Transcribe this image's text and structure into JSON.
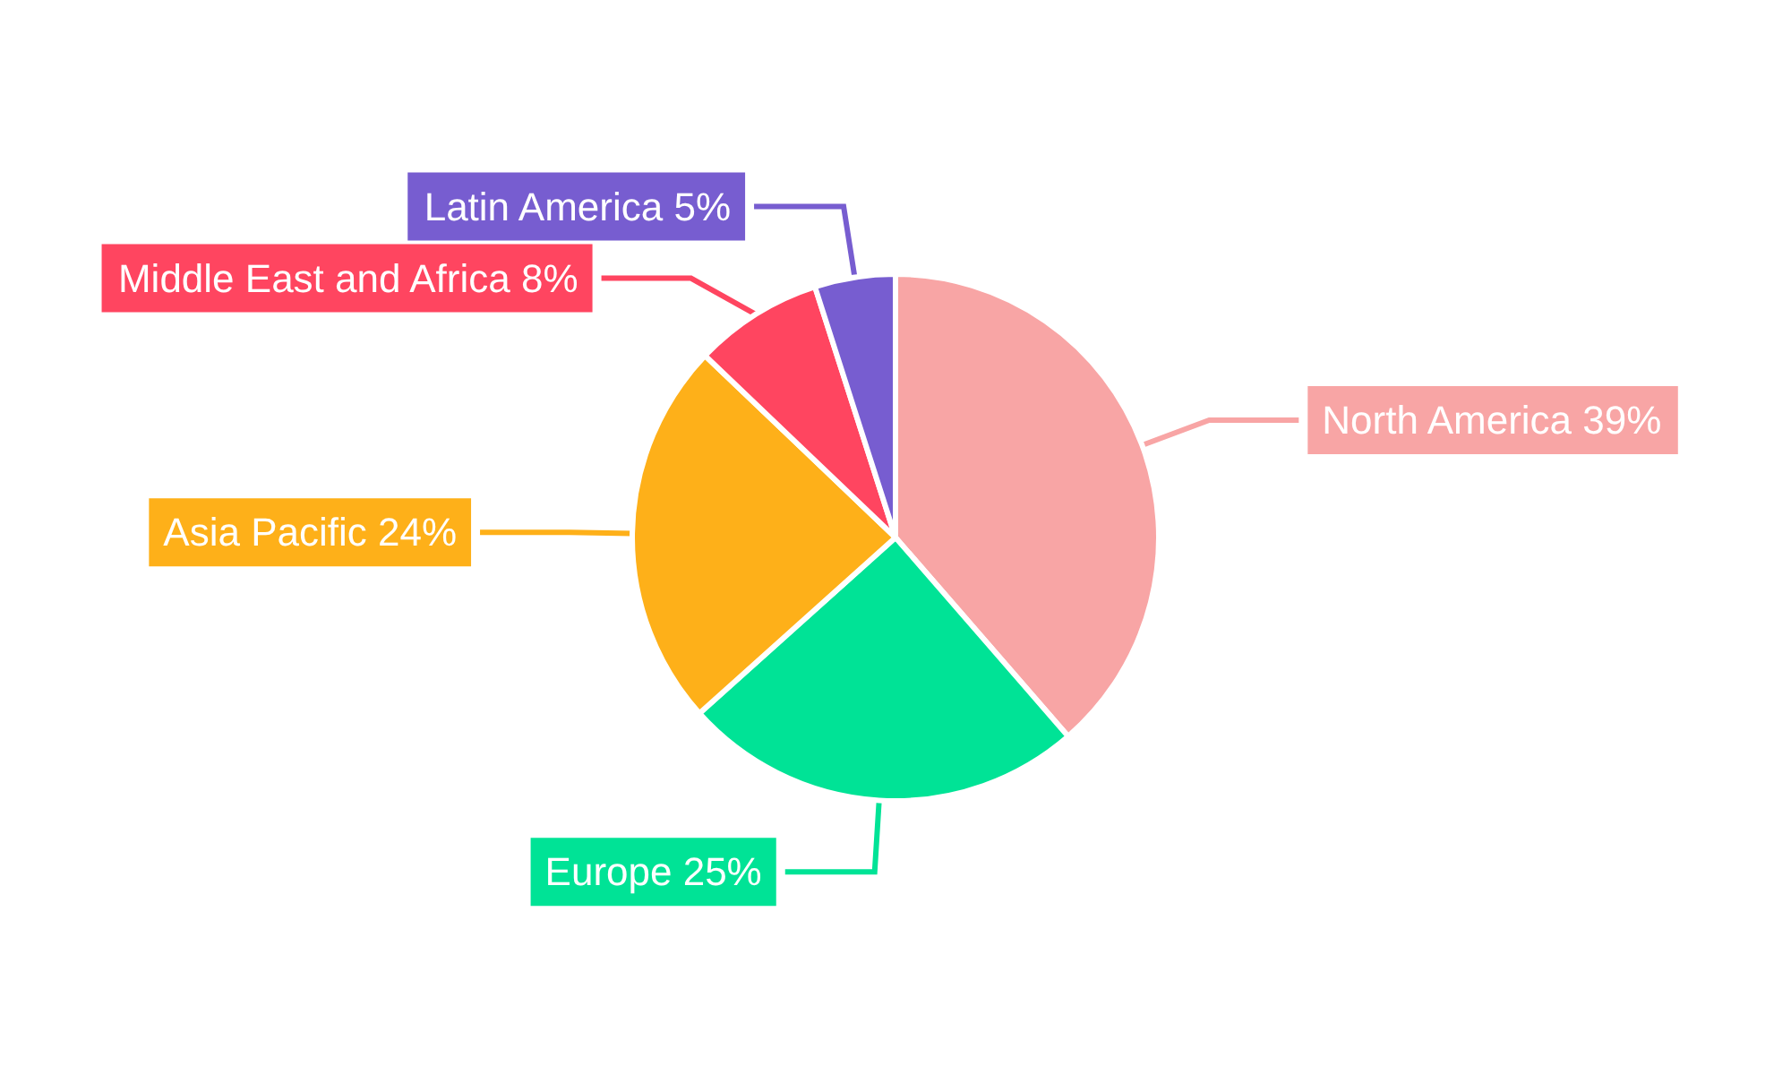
{
  "chart_data": {
    "type": "pie",
    "categories": [
      "North America",
      "Europe",
      "Asia Pacific",
      "Middle East and Africa",
      "Latin America"
    ],
    "values": [
      39,
      25,
      24,
      8,
      5
    ],
    "value_labels": [
      "39%",
      "25%",
      "24%",
      "8%",
      "5%"
    ],
    "colors": [
      "#f8a5a5",
      "#00e396",
      "#feb019",
      "#ff4560",
      "#775dd0"
    ],
    "legend": false
  }
}
